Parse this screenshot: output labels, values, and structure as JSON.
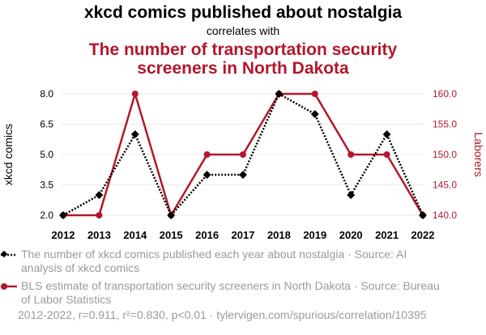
{
  "colors": {
    "series1": "#000000",
    "series2": "#b2182b",
    "grid": "#e9e9e9",
    "muted": "#9a9a9a"
  },
  "chart_data": {
    "type": "line",
    "title": "xkcd comics published about nostalgia",
    "subtitle": "correlates with",
    "title2": "The number of transportation security screeners in North Dakota",
    "title2_lines": [
      "The number of transportation security",
      "screeners in North Dakota"
    ],
    "x": [
      2012,
      2013,
      2014,
      2015,
      2016,
      2017,
      2018,
      2019,
      2020,
      2021,
      2022
    ],
    "x_tick_labels": [
      "2012",
      "2013",
      "2014",
      "2015",
      "2016",
      "2017",
      "2018",
      "2019",
      "2020",
      "2021",
      "2022"
    ],
    "series": [
      {
        "values": [
          2,
          3,
          6,
          2,
          4,
          4,
          8,
          7,
          3,
          6,
          2
        ],
        "axis": "left",
        "color": "#000000",
        "style": "dotted",
        "marker": "diamond"
      },
      {
        "values": [
          140,
          140,
          160,
          140,
          150,
          150,
          160,
          160,
          150,
          150,
          140
        ],
        "axis": "right",
        "color": "#b2182b",
        "style": "solid",
        "marker": "circle"
      }
    ],
    "ylabel_left": "xkcd comics",
    "ylabel_right": "Laborers",
    "ylim_left": [
      2,
      8
    ],
    "ylim_right": [
      140,
      160
    ],
    "yticks_left": [
      "2.0",
      "3.5",
      "5.0",
      "6.5",
      "8.0"
    ],
    "yticks_right": [
      "140.0",
      "145.0",
      "150.0",
      "155.0",
      "160.0"
    ],
    "grid": true,
    "legend_position": "bottom"
  },
  "legend": {
    "items": [
      "The number of xkcd comics published each year about nostalgia · Source: AI analysis of xkcd comics",
      "BLS estimate of transportation security screeners in North Dakota · Source: Bureau of Labor Statistics"
    ]
  },
  "footnote": "2012-2022, r=0.911, r²=0.830, p<0.01 · tylervigen.com/spurious/correlation/10395"
}
